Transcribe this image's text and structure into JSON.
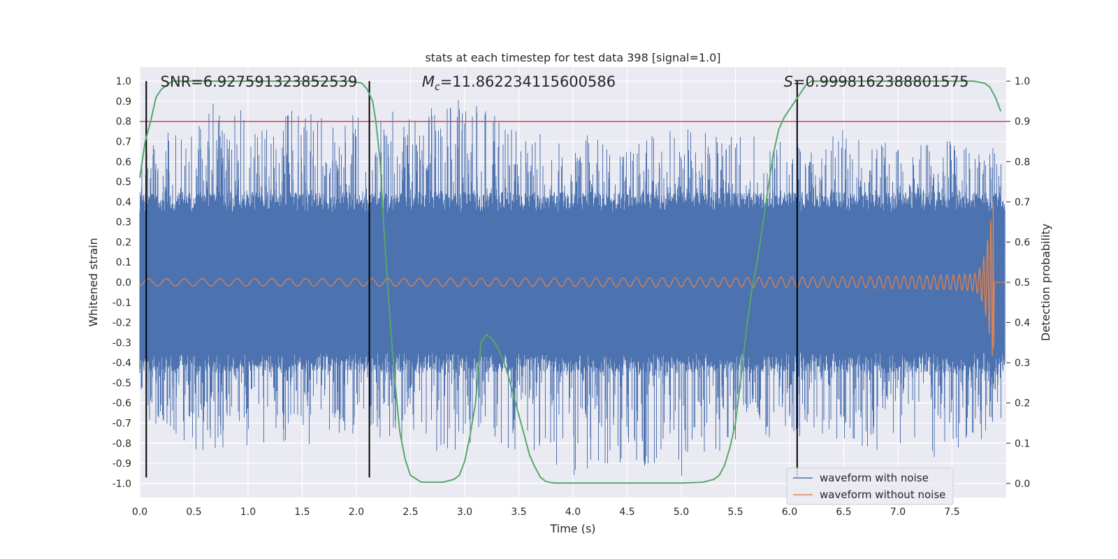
{
  "colors": {
    "background": "#eaeaf2",
    "grid": "#ffffff",
    "noise": "#4c72b0",
    "clean": "#dd8452",
    "probability": "#55a868",
    "threshold": "#c44e52",
    "marker": "#000000",
    "text": "#262626"
  },
  "chart_data": {
    "type": "line",
    "title": "stats at each timestep for test data 398 [signal=1.0]",
    "xlabel": "Time (s)",
    "ylabel": "Whitened strain",
    "y2label": "Detection probability",
    "xlim": [
      0.0,
      8.0
    ],
    "ylim": [
      -1.07,
      1.07
    ],
    "y2lim": [
      -0.035,
      1.035
    ],
    "x_ticks": [
      "0.0",
      "0.5",
      "1.0",
      "1.5",
      "2.0",
      "2.5",
      "3.0",
      "3.5",
      "4.0",
      "4.5",
      "5.0",
      "5.5",
      "6.0",
      "6.5",
      "7.0",
      "7.5"
    ],
    "x_tick_values": [
      0.0,
      0.5,
      1.0,
      1.5,
      2.0,
      2.5,
      3.0,
      3.5,
      4.0,
      4.5,
      5.0,
      5.5,
      6.0,
      6.5,
      7.0,
      7.5
    ],
    "y_ticks": [
      "1.0",
      "0.9",
      "0.8",
      "0.7",
      "0.6",
      "0.5",
      "0.4",
      "0.3",
      "0.2",
      "0.1",
      "0.0",
      "-0.1",
      "-0.2",
      "-0.3",
      "-0.4",
      "-0.5",
      "-0.6",
      "-0.7",
      "-0.8",
      "-0.9",
      "-1.0"
    ],
    "y_tick_values": [
      1.0,
      0.9,
      0.8,
      0.7,
      0.6,
      0.5,
      0.4,
      0.3,
      0.2,
      0.1,
      0.0,
      -0.1,
      -0.2,
      -0.3,
      -0.4,
      -0.5,
      -0.6,
      -0.7,
      -0.8,
      -0.9,
      -1.0
    ],
    "y2_ticks": [
      "1.0",
      "0.9",
      "0.8",
      "0.7",
      "0.6",
      "0.5",
      "0.4",
      "0.3",
      "0.2",
      "0.1",
      "0.0"
    ],
    "y2_tick_values": [
      1.0,
      0.9,
      0.8,
      0.7,
      0.6,
      0.5,
      0.4,
      0.3,
      0.2,
      0.1,
      0.0
    ],
    "annotations": {
      "snr": "SNR=6.927591323852539",
      "mc_symbol": "M",
      "mc_subscript": "c",
      "mc_value": "=11.862234115600586",
      "s_symbol": "S",
      "s_value": "=0.9998162388801575"
    },
    "annotation_x": {
      "snr": 1.1,
      "mc": 3.5,
      "s": 6.8
    },
    "threshold_probability": 0.9,
    "vertical_markers": [
      0.06,
      2.12,
      6.07
    ],
    "marker_range": [
      -0.97,
      1.0
    ],
    "detection_probability": {
      "x": [
        0.0,
        0.05,
        0.1,
        0.15,
        0.2,
        0.25,
        0.3,
        0.4,
        0.6,
        1.0,
        1.5,
        1.8,
        1.95,
        2.05,
        2.1,
        2.15,
        2.18,
        2.22,
        2.25,
        2.3,
        2.35,
        2.4,
        2.45,
        2.5,
        2.6,
        2.8,
        2.9,
        2.95,
        3.0,
        3.05,
        3.1,
        3.15,
        3.2,
        3.25,
        3.3,
        3.35,
        3.4,
        3.45,
        3.5,
        3.55,
        3.6,
        3.65,
        3.7,
        3.75,
        3.8,
        3.85,
        3.9,
        4.0,
        4.5,
        5.0,
        5.2,
        5.3,
        5.35,
        5.4,
        5.45,
        5.5,
        5.55,
        5.6,
        5.65,
        5.7,
        5.75,
        5.8,
        5.85,
        5.9,
        5.95,
        6.0,
        6.05,
        6.1,
        6.15,
        6.2,
        6.25,
        6.3,
        6.4,
        6.6,
        7.0,
        7.5,
        7.7,
        7.8,
        7.85,
        7.9,
        7.95
      ],
      "values": [
        0.76,
        0.85,
        0.9,
        0.96,
        0.98,
        0.99,
        1.0,
        1.0,
        1.0,
        1.0,
        1.0,
        1.0,
        1.0,
        0.995,
        0.98,
        0.95,
        0.9,
        0.8,
        0.65,
        0.45,
        0.27,
        0.13,
        0.06,
        0.02,
        0.003,
        0.003,
        0.01,
        0.02,
        0.055,
        0.12,
        0.2,
        0.35,
        0.37,
        0.36,
        0.34,
        0.31,
        0.27,
        0.22,
        0.17,
        0.12,
        0.07,
        0.04,
        0.015,
        0.005,
        0.002,
        0.001,
        0.001,
        0.001,
        0.001,
        0.001,
        0.003,
        0.01,
        0.02,
        0.045,
        0.09,
        0.15,
        0.26,
        0.38,
        0.48,
        0.55,
        0.64,
        0.73,
        0.82,
        0.88,
        0.91,
        0.93,
        0.95,
        0.97,
        0.99,
        1.0,
        1.0,
        1.0,
        1.0,
        1.0,
        1.0,
        1.0,
        1.0,
        0.995,
        0.985,
        0.96,
        0.925
      ]
    },
    "noise_envelope": {
      "x": [
        0.0,
        0.5,
        1.0,
        1.5,
        2.0,
        2.5,
        3.0,
        3.5,
        4.0,
        4.5,
        5.0,
        5.5,
        6.0,
        6.5,
        7.0,
        7.5,
        8.0
      ],
      "max": [
        0.62,
        0.87,
        0.95,
        0.84,
        0.83,
        0.86,
        0.92,
        0.76,
        0.75,
        0.68,
        0.79,
        0.74,
        0.72,
        0.78,
        0.67,
        0.71,
        0.66
      ],
      "min": [
        -0.66,
        -0.86,
        -0.81,
        -0.81,
        -0.8,
        -0.83,
        -0.85,
        -0.84,
        -0.96,
        -0.89,
        -0.97,
        -0.8,
        -0.76,
        -0.82,
        -0.9,
        -0.86,
        -0.81
      ],
      "body": 0.35
    },
    "clean_waveform": {
      "peak_time": 7.88,
      "start_amplitude": 0.018,
      "peak_amplitude": 0.4,
      "min_amplitude": -0.33
    },
    "legend": {
      "position": "lower-right",
      "entries": [
        "waveform with noise",
        "waveform without noise"
      ]
    }
  }
}
